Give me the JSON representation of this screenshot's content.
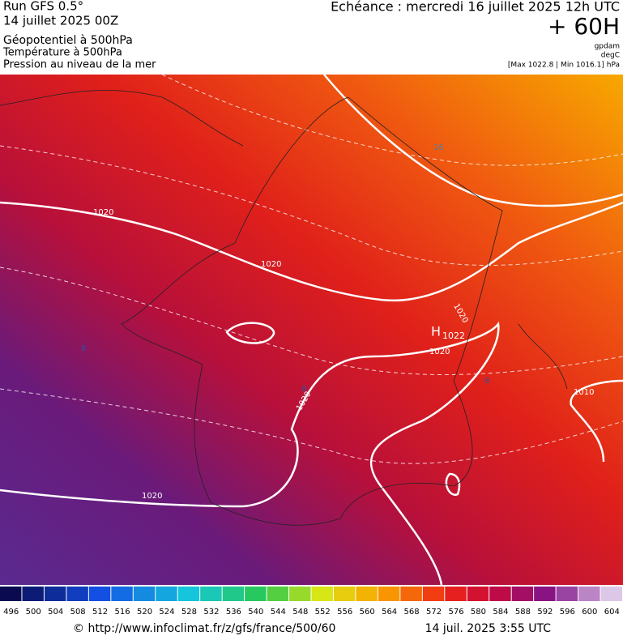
{
  "header": {
    "run": "Run GFS 0.5°",
    "date": "14 juillet 2025 00Z",
    "field1": "Géopotentiel à 500hPa",
    "field2": "Température à 500hPa",
    "field3": "Pression au niveau de la mer",
    "echeance": "Echéance : mercredi 16 juillet 2025 12h UTC",
    "lead": "+ 60H",
    "unit1": "gpdam",
    "unit2": "degC",
    "range": "[Max 1022.8 | Min 1016.1] hPa"
  },
  "map": {
    "labels": [
      "1020",
      "1020",
      "1020",
      "1020",
      "1020",
      "1020",
      "1010",
      "16",
      "8",
      "8",
      "8",
      "H",
      "1022"
    ]
  },
  "colorbar": {
    "labels": [
      496,
      500,
      504,
      508,
      512,
      516,
      520,
      524,
      528,
      532,
      536,
      540,
      544,
      548,
      552,
      556,
      560,
      564,
      568,
      572,
      576,
      580,
      584,
      588,
      592,
      596,
      600,
      604
    ]
  },
  "footer": {
    "source": "© http://www.infoclimat.fr/z/gfs/france/500/60",
    "timestamp": "14 juil. 2025  3:55 UTC"
  }
}
